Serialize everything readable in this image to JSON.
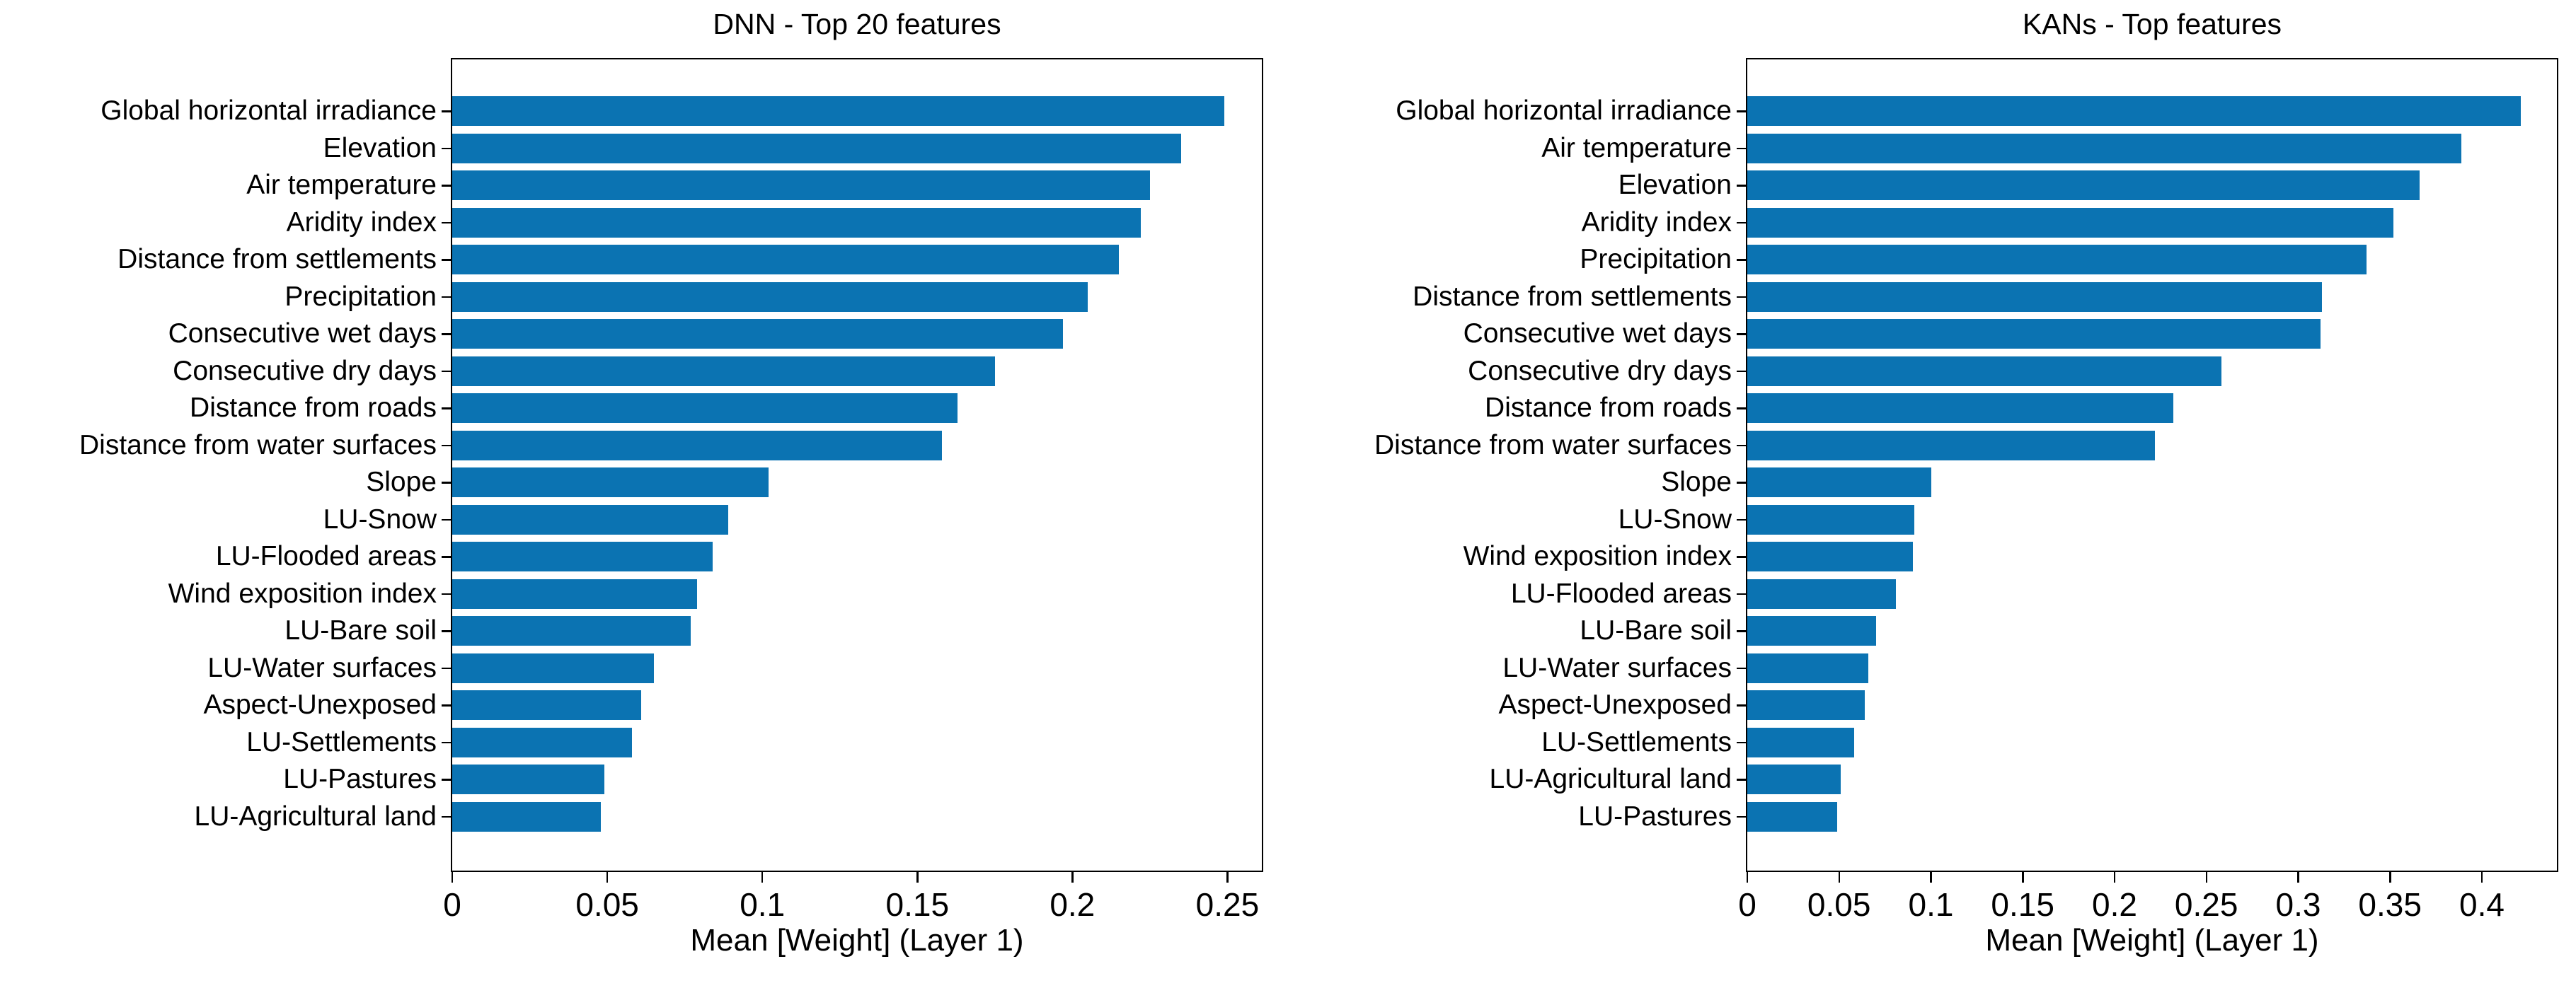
{
  "page": {
    "background_color": "#ffffff",
    "text_color": "#000000",
    "accent_color": "#0b73b2"
  },
  "chart_data": [
    {
      "type": "bar",
      "orientation": "horizontal",
      "title": "DNN - Top 20 features",
      "xlabel": "Mean [Weight] (Layer 1)",
      "ylabel": "",
      "bar_color": "#0b73b2",
      "axis_color": "#000000",
      "grid": false,
      "legend": "none",
      "xlim": [
        0,
        0.262
      ],
      "xticks": [
        0,
        0.05,
        0.1,
        0.15,
        0.2,
        0.25
      ],
      "xtick_labels": [
        "0",
        "0.05",
        "0.1",
        "0.15",
        "0.2",
        "0.25"
      ],
      "categories": [
        "Global horizontal irradiance",
        "Elevation",
        "Air temperature",
        "Aridity index",
        "Distance from settlements",
        "Precipitation",
        "Consecutive wet days",
        "Consecutive dry days",
        "Distance from roads",
        "Distance from water surfaces",
        "Slope",
        "LU-Snow",
        "LU-Flooded areas",
        "Wind exposition index",
        "LU-Bare soil",
        "LU-Water surfaces",
        "Aspect-Unexposed",
        "LU-Settlements",
        "LU-Pastures",
        "LU-Agricultural land"
      ],
      "values": [
        0.249,
        0.235,
        0.225,
        0.222,
        0.215,
        0.205,
        0.197,
        0.175,
        0.163,
        0.158,
        0.102,
        0.089,
        0.084,
        0.079,
        0.077,
        0.065,
        0.061,
        0.058,
        0.049,
        0.048
      ]
    },
    {
      "type": "bar",
      "orientation": "horizontal",
      "title": "KANs - Top features",
      "xlabel": "Mean [Weight] (Layer 1)",
      "ylabel": "",
      "bar_color": "#0b73b2",
      "axis_color": "#000000",
      "grid": false,
      "legend": "none",
      "xlim": [
        0,
        0.4424
      ],
      "xticks": [
        0,
        0.05,
        0.1,
        0.15,
        0.2,
        0.25,
        0.3,
        0.35,
        0.4
      ],
      "xtick_labels": [
        "0",
        "0.05",
        "0.1",
        "0.15",
        "0.2",
        "0.25",
        "0.3",
        "0.35",
        "0.4"
      ],
      "categories": [
        "Global horizontal irradiance",
        "Air temperature",
        "Elevation",
        "Aridity index",
        "Precipitation",
        "Distance from settlements",
        "Consecutive wet days",
        "Consecutive dry days",
        "Distance from roads",
        "Distance from water surfaces",
        "Slope",
        "LU-Snow",
        "Wind exposition index",
        "LU-Flooded areas",
        "LU-Bare soil",
        "LU-Water surfaces",
        "Aspect-Unexposed",
        "LU-Settlements",
        "LU-Agricultural land",
        "LU-Pastures"
      ],
      "values": [
        0.421,
        0.389,
        0.366,
        0.352,
        0.337,
        0.313,
        0.312,
        0.258,
        0.232,
        0.222,
        0.1,
        0.091,
        0.09,
        0.081,
        0.07,
        0.066,
        0.064,
        0.058,
        0.051,
        0.049
      ]
    }
  ]
}
